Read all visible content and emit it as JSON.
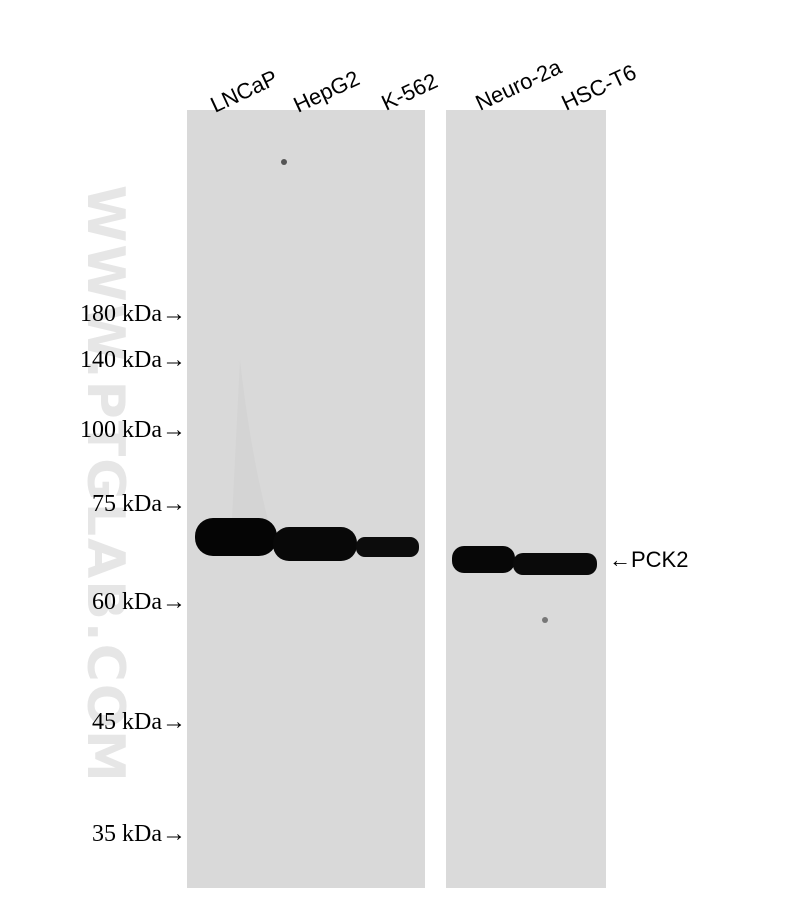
{
  "lanes": [
    "LNCaP",
    "HepG2",
    "K-562",
    "Neuro-2a",
    "HSC-T6"
  ],
  "markers": [
    "180 kDa→",
    "140 kDa→",
    "100 kDa→",
    "75 kDa→",
    "60 kDa→",
    "45 kDa→",
    "35 kDa→"
  ],
  "target": "←PCK2",
  "watermark": "WWW.PTGLAB.COM"
}
